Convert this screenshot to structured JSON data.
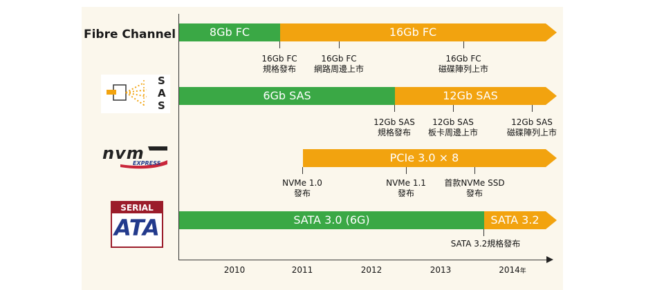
{
  "rows": {
    "fibre_channel": {
      "label": "Fibre Channel",
      "current": "8Gb FC",
      "next": "16Gb FC",
      "notes": [
        {
          "line1": "16Gb FC",
          "line2": "規格發布"
        },
        {
          "line1": "16Gb FC",
          "line2": "網路周邊上市"
        },
        {
          "line1": "16Gb FC",
          "line2": "磁碟陣列上市"
        }
      ]
    },
    "sas": {
      "logo_text": "SAS",
      "current": "6Gb SAS",
      "next": "12Gb SAS",
      "notes": [
        {
          "line1": "12Gb SAS",
          "line2": "規格發布"
        },
        {
          "line1": "12Gb SAS",
          "line2": "板卡周邊上市"
        },
        {
          "line1": "12Gb SAS",
          "line2": "磁碟陣列上市"
        }
      ]
    },
    "nvme": {
      "logo_text": "nvm",
      "logo_sub": "EXPRESS",
      "bar": "PCIe 3.0 × 8",
      "notes": [
        {
          "line1": "NVMe 1.0",
          "line2": "發布"
        },
        {
          "line1": "NVMe 1.1",
          "line2": "發布"
        },
        {
          "line1": "首款NVMe SSD",
          "line2": "發布"
        }
      ]
    },
    "sata": {
      "logo_top": "SERIAL",
      "logo_main": "ATA",
      "current": "SATA 3.0 (6G)",
      "next": "SATA 3.2",
      "notes": [
        {
          "line1": "SATA 3.2規格發布"
        }
      ]
    }
  },
  "axis": {
    "years": [
      "2010",
      "2011",
      "2012",
      "2013",
      "2014"
    ],
    "unit": "年"
  },
  "colors": {
    "green": "#3aa845",
    "orange": "#f2a30f"
  }
}
